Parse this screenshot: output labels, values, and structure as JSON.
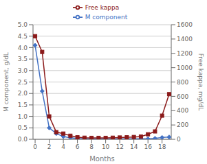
{
  "chart_data": {
    "type": "line",
    "xlabel": "Months",
    "ylabel": "M component, g/dL",
    "y2label": "Free kappa, mg/dL",
    "x": [
      0,
      1,
      2,
      3,
      4,
      5,
      6,
      7,
      8,
      9,
      10,
      11,
      12,
      13,
      14,
      15,
      16,
      17,
      18,
      19
    ],
    "series": [
      {
        "name": "M component",
        "color": "#4472C4",
        "marker": "diamond",
        "values": [
          4.1,
          2.1,
          0.5,
          0.25,
          0.12,
          0.07,
          0.04,
          0.03,
          0.02,
          0.02,
          0.02,
          0.02,
          0.02,
          0.02,
          0.02,
          0.02,
          0.02,
          0.04,
          0.08,
          0.1
        ]
      },
      {
        "name": "Free kappa",
        "color": "#8B1A1A",
        "marker": "square",
        "axis": "y2",
        "values": [
          1440,
          1220,
          320,
          100,
          80,
          50,
          28,
          22,
          20,
          20,
          20,
          22,
          25,
          28,
          32,
          38,
          70,
          110,
          330,
          630
        ]
      }
    ],
    "xlim": [
      -0.3,
      19.3
    ],
    "xticks": [
      0,
      2,
      4,
      6,
      8,
      10,
      12,
      14,
      16,
      18
    ],
    "ylim": [
      0,
      5
    ],
    "yticks": [
      {
        "value": 0,
        "label": "0.0"
      },
      0.5,
      {
        "value": 1,
        "label": "1.0"
      },
      1.5,
      {
        "value": 2,
        "label": "2.0"
      },
      2.5,
      {
        "value": 3,
        "label": "3.0"
      },
      3.5,
      {
        "value": 4,
        "label": "4.0"
      },
      4.5,
      {
        "value": 5,
        "label": "5.0"
      }
    ],
    "y2lim": [
      0,
      1600
    ],
    "y2ticks": [
      0,
      200,
      400,
      600,
      800,
      1000,
      1200,
      1400,
      1600
    ],
    "grid": true,
    "legend": "top"
  }
}
